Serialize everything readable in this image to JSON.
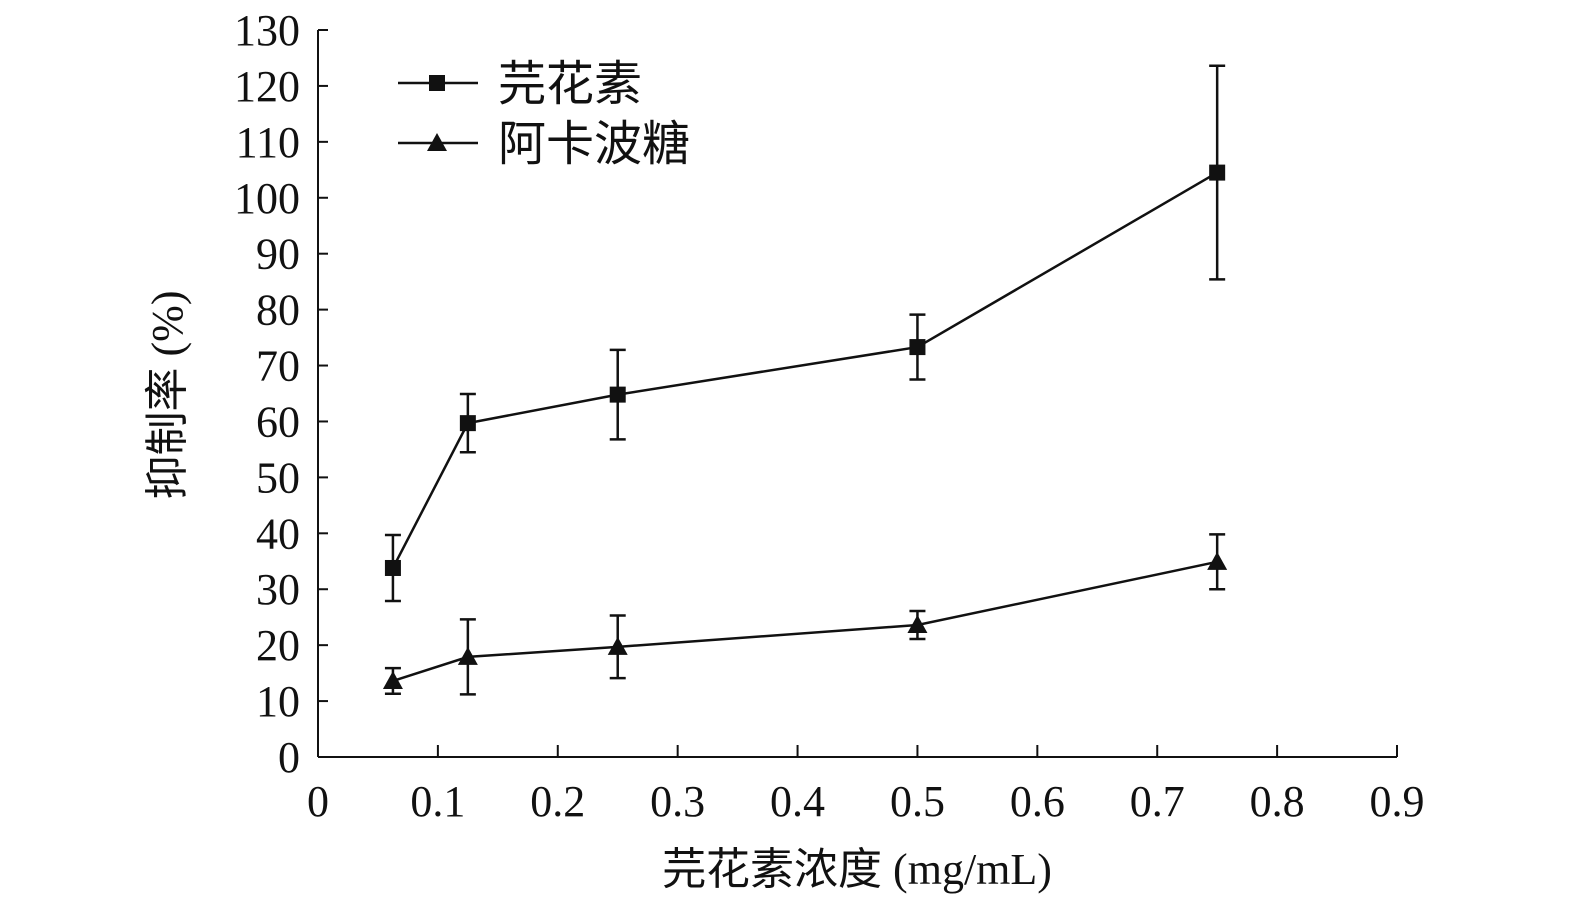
{
  "chart_data": {
    "type": "line",
    "title": "",
    "xlabel": "芫花素浓度 (mg/mL)",
    "ylabel": "抑制率 (%)",
    "xlim": [
      0,
      0.9
    ],
    "ylim": [
      0,
      130
    ],
    "xticks": [
      0,
      0.1,
      0.2,
      0.3,
      0.4,
      0.5,
      0.6,
      0.7,
      0.8,
      0.9
    ],
    "xtick_labels": [
      "0",
      "0.1",
      "0.2",
      "0.3",
      "0.4",
      "0.5",
      "0.6",
      "0.7",
      "0.8",
      "0.9"
    ],
    "yticks": [
      0,
      10,
      20,
      30,
      40,
      50,
      60,
      70,
      80,
      90,
      100,
      110,
      120,
      130
    ],
    "ytick_labels": [
      "0",
      "10",
      "20",
      "30",
      "40",
      "50",
      "60",
      "70",
      "80",
      "90",
      "100",
      "110",
      "120",
      "130"
    ],
    "grid": false,
    "legend_position": "top-left",
    "series": [
      {
        "name": "芫花素",
        "marker": "square",
        "color": "#111111",
        "x": [
          0.0625,
          0.125,
          0.25,
          0.5,
          0.75
        ],
        "y": [
          33.8,
          59.7,
          64.8,
          73.3,
          104.5
        ],
        "error": [
          5.9,
          5.2,
          8.0,
          5.8,
          19.1
        ]
      },
      {
        "name": "阿卡波糖",
        "marker": "triangle",
        "color": "#111111",
        "x": [
          0.0625,
          0.125,
          0.25,
          0.5,
          0.75
        ],
        "y": [
          13.6,
          17.9,
          19.7,
          23.6,
          34.9
        ],
        "error": [
          2.3,
          6.7,
          5.6,
          2.5,
          4.9
        ]
      }
    ]
  }
}
